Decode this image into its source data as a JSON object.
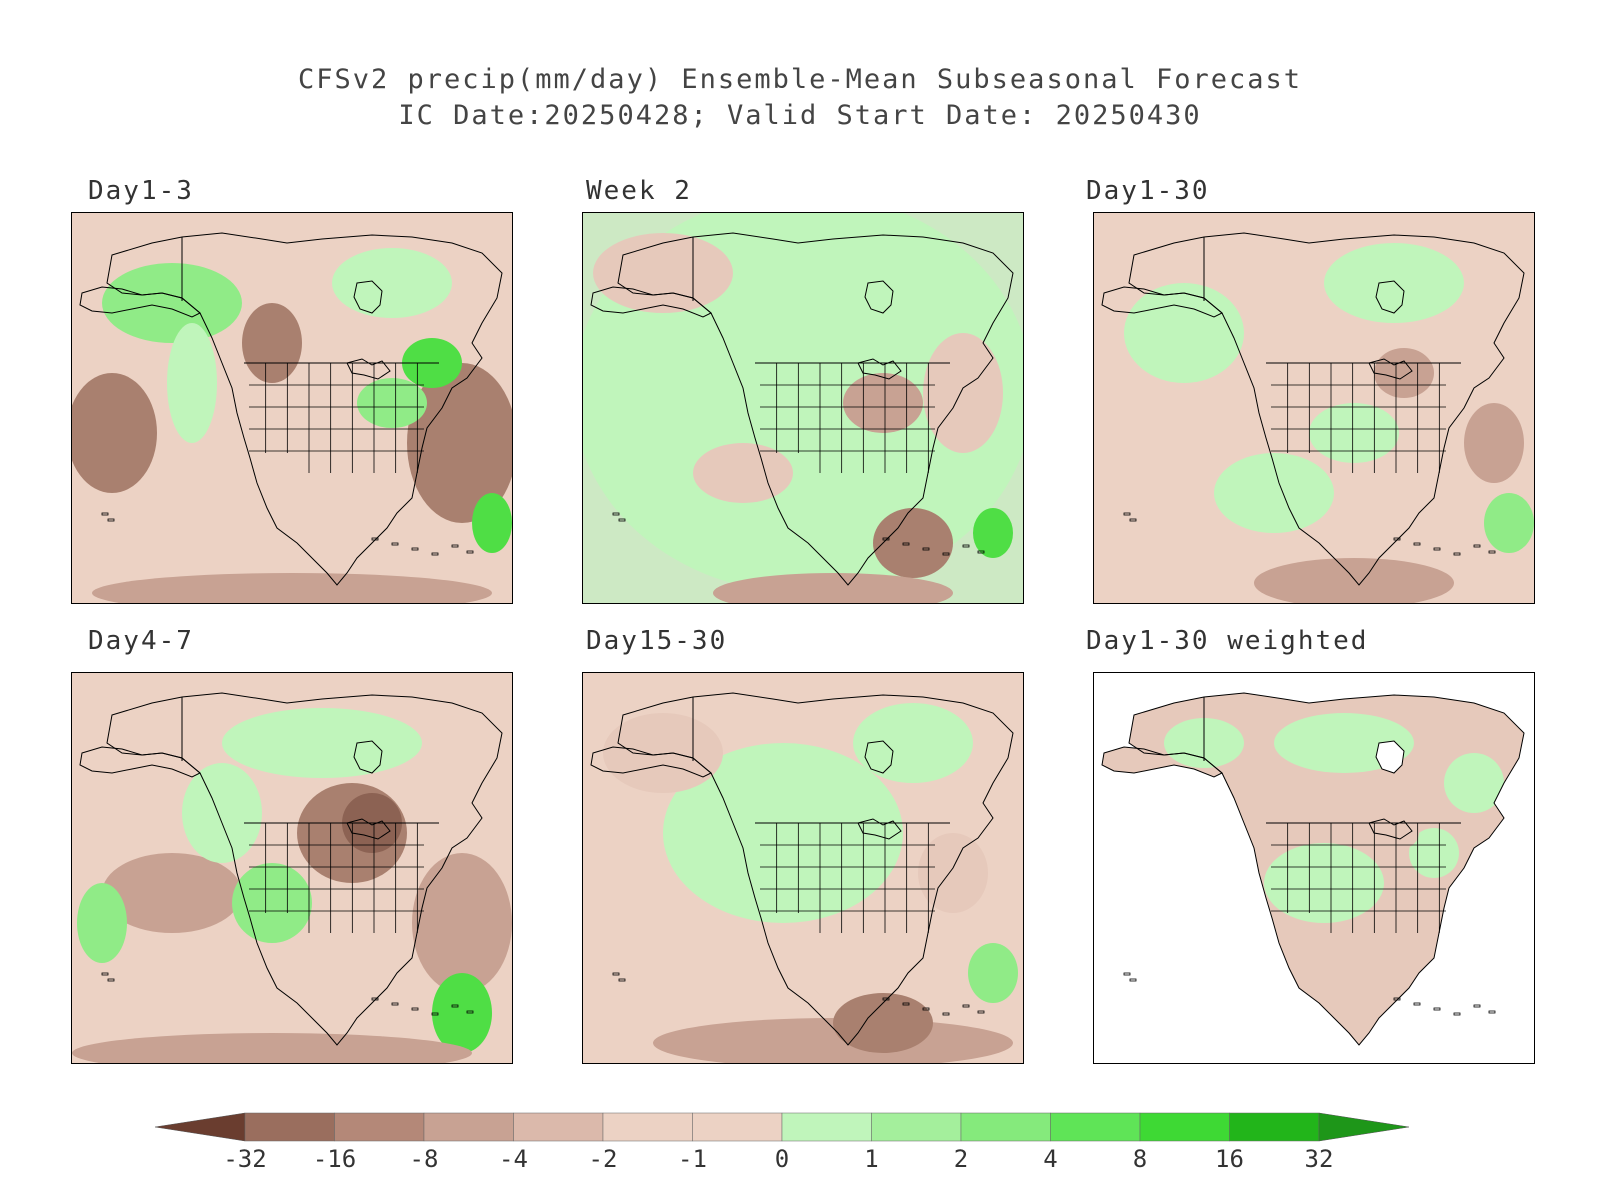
{
  "title": {
    "line1": "CFSv2 precip(mm/day) Ensemble-Mean Subseasonal Forecast",
    "line2": "IC Date:20250428; Valid Start Date: 20250430"
  },
  "panels": [
    {
      "id": "p1",
      "label": "Day1-3",
      "background": "#ecd2c4",
      "tone": "mixed-dry-north-wet-east"
    },
    {
      "id": "p2",
      "label": "Week 2",
      "background": "#cde9c4",
      "tone": "mostly-wet"
    },
    {
      "id": "p3",
      "label": "Day1-30",
      "background": "#ecd2c4",
      "tone": "mixed"
    },
    {
      "id": "p4",
      "label": "Day4-7",
      "background": "#ecd2c4",
      "tone": "dry-midwest"
    },
    {
      "id": "p5",
      "label": "Day15-30",
      "background": "#ecd2c4",
      "tone": "mixed"
    },
    {
      "id": "p6",
      "label": "Day1-30 weighted",
      "background": "#ffffff",
      "tone": "land-only"
    }
  ],
  "colorbar": {
    "labels": [
      "-32",
      "-16",
      "-8",
      "-4",
      "-2",
      "-1",
      "0",
      "1",
      "2",
      "4",
      "8",
      "16",
      "32"
    ],
    "colors": [
      "#7e4f3f",
      "#9a6e5e",
      "#b48878",
      "#c8a293",
      "#dbb9ab",
      "#ecd2c4",
      "#ecd2c4",
      "#c0f5bb",
      "#a4ef9c",
      "#85ea7c",
      "#5fe457",
      "#3ed934",
      "#22b51a",
      "#1a8f14"
    ],
    "low_arrow_color": "#6a3d2f",
    "high_arrow_color": "#1e9619"
  },
  "map_colors": {
    "dry_light": "#e6c9bb",
    "dry_mid": "#c8a293",
    "dry_dark": "#a9806f",
    "wet_light": "#c0f5bb",
    "wet_mid": "#90eb87",
    "wet_dark": "#4fde45",
    "coast": "#000000"
  }
}
